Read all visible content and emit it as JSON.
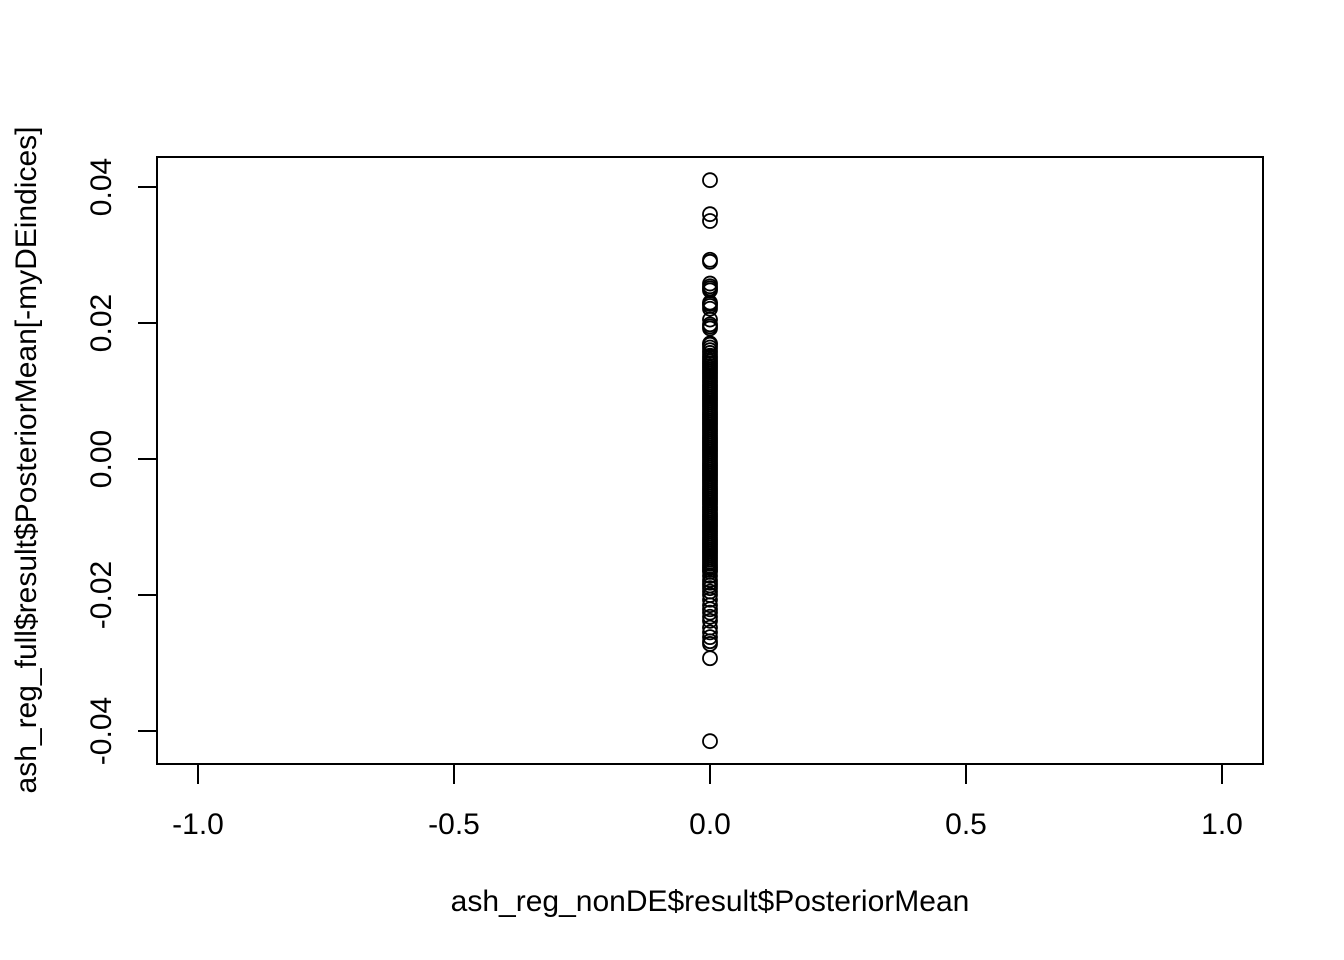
{
  "chart_data": {
    "type": "scatter",
    "title": "",
    "xlabel": "ash_reg_nonDE$result$PosteriorMean",
    "ylabel": "ash_reg_full$result$PosteriorMean[-myDEindices]",
    "xlim": [
      -1.08,
      1.08
    ],
    "ylim": [
      -0.0445,
      0.0445
    ],
    "x_ticks": [
      -1.0,
      -0.5,
      0.0,
      0.5,
      1.0
    ],
    "x_tick_labels": [
      "-1.0",
      "-0.5",
      "0.0",
      "0.5",
      "1.0"
    ],
    "y_ticks": [
      -0.04,
      -0.02,
      0.0,
      0.02,
      0.04
    ],
    "y_tick_labels": [
      "-0.04",
      "-0.02",
      "0.00",
      "0.02",
      "0.04"
    ],
    "grid": false,
    "legend": "none",
    "marker": "open-circle",
    "color": "#000000",
    "points": {
      "x": 0.0,
      "y": [
        0.041,
        0.036,
        0.035,
        0.0293,
        0.029,
        0.0258,
        0.0254,
        0.0251,
        0.0248,
        0.023,
        0.0228,
        0.0225,
        0.0221,
        0.0205,
        0.0198,
        0.0195,
        0.0192,
        0.017,
        0.0168,
        0.0164,
        0.016,
        0.0156,
        0.0152,
        0.0149,
        0.0146,
        0.0143,
        0.014,
        0.0137,
        0.0134,
        0.0131,
        0.0128,
        0.0125,
        0.0122,
        0.0119,
        0.0116,
        0.0113,
        0.011,
        0.0107,
        0.0104,
        0.0101,
        0.0098,
        0.0095,
        0.0092,
        0.0089,
        0.0086,
        0.0083,
        0.008,
        0.0077,
        0.0074,
        0.0071,
        0.0068,
        0.0065,
        0.0062,
        0.0059,
        0.0056,
        0.0053,
        0.005,
        0.0047,
        0.0044,
        0.0041,
        0.0038,
        0.0035,
        0.0032,
        0.0029,
        0.0026,
        0.0023,
        0.002,
        0.0017,
        0.0014,
        0.0011,
        0.0008,
        0.0005,
        0.0002,
        -0.0001,
        -0.0004,
        -0.0007,
        -0.001,
        -0.0013,
        -0.0016,
        -0.0019,
        -0.0022,
        -0.0025,
        -0.0028,
        -0.0031,
        -0.0034,
        -0.0037,
        -0.004,
        -0.0043,
        -0.0046,
        -0.0049,
        -0.0052,
        -0.0055,
        -0.0058,
        -0.0061,
        -0.0064,
        -0.0067,
        -0.007,
        -0.0073,
        -0.0076,
        -0.0079,
        -0.0082,
        -0.0085,
        -0.0088,
        -0.0091,
        -0.0094,
        -0.0097,
        -0.01,
        -0.0103,
        -0.0106,
        -0.0109,
        -0.0112,
        -0.0115,
        -0.0118,
        -0.0121,
        -0.0124,
        -0.0127,
        -0.013,
        -0.0133,
        -0.0136,
        -0.0139,
        -0.0142,
        -0.0145,
        -0.0148,
        -0.0151,
        -0.0154,
        -0.0157,
        -0.016,
        -0.0163,
        -0.0166,
        -0.0172,
        -0.0178,
        -0.0182,
        -0.0186,
        -0.019,
        -0.0195,
        -0.02,
        -0.0207,
        -0.0215,
        -0.0221,
        -0.0226,
        -0.0232,
        -0.0238,
        -0.0248,
        -0.0255,
        -0.0262,
        -0.0268,
        -0.0272,
        -0.0293,
        -0.0415
      ]
    }
  }
}
